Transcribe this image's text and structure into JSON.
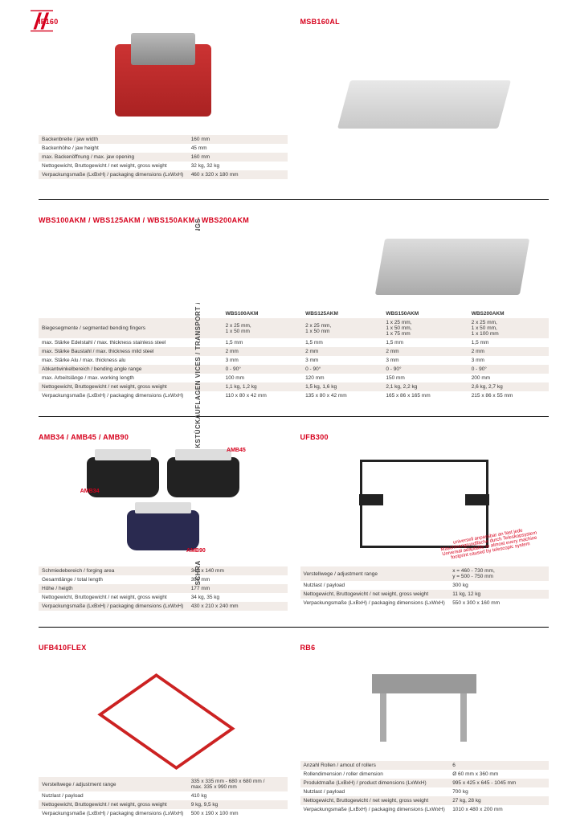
{
  "sidebar_label": "SCHRAUBSTÖCKE / TRANSPORT / WERKSTÜCKAUFLAGEN  VICES / TRANSPORT / WORKPIECE RESTINGS",
  "products": {
    "if160": {
      "title": "IF160",
      "specs": [
        [
          "Backenbreite / jaw width",
          "160 mm"
        ],
        [
          "Backenhöhe / jaw height",
          "45 mm"
        ],
        [
          "max. Backenöffnung / max. jaw opening",
          "160 mm"
        ],
        [
          "Nettogewicht, Bruttogewicht / net weight, gross weight",
          "32 kg, 32 kg"
        ],
        [
          "Verpackungsmaße (LxBxH) / packaging dimensions (LxWxH)",
          "460 x 320 x 180 mm"
        ]
      ]
    },
    "msb160al": {
      "title": "MSB160AL"
    },
    "wbs": {
      "title": "WBS100AKM / WBS125AKM / WBS150AKM / WBS200AKM",
      "cols": [
        "",
        "WBS100AKM",
        "WBS125AKM",
        "WBS150AKM",
        "WBS200AKM"
      ],
      "rows": [
        [
          "Biegesegmente / segmented bending fingers",
          "2 x 25 mm,\n1 x 50 mm",
          "2 x 25 mm,\n1 x 50 mm",
          "1 x 25 mm,\n1 x 50 mm,\n1 x 75 mm",
          "2 x 25 mm,\n1 x 50 mm,\n1 x 100 mm"
        ],
        [
          "max. Stärke Edelstahl / max. thickness stainless steel",
          "1,5 mm",
          "1,5 mm",
          "1,5 mm",
          "1,5 mm"
        ],
        [
          "max. Stärke Baustahl / max. thickness mild steel",
          "2 mm",
          "2 mm",
          "2 mm",
          "2 mm"
        ],
        [
          "max. Stärke Alu / max. thickness alu",
          "3 mm",
          "3 mm",
          "3 mm",
          "3 mm"
        ],
        [
          "Abkantwinkelbereich / bending angle range",
          "0 - 90°",
          "0 - 90°",
          "0 - 90°",
          "0 - 90°"
        ],
        [
          "max. Arbeitslänge / max. working length",
          "100 mm",
          "120 mm",
          "150 mm",
          "200 mm"
        ],
        [
          "Nettogewicht, Bruttogewicht / net weight, gross weight",
          "1,1 kg, 1,2 kg",
          "1,5 kg, 1,6 kg",
          "2,1 kg, 2,2 kg",
          "2,6 kg, 2,7 kg"
        ],
        [
          "Verpackungsmaße (LxBxH) / packaging dimensions (LxWxH)",
          "110 x 80 x 42 mm",
          "135 x 80 x 42 mm",
          "165 x 86 x 165 mm",
          "215 x 86 x 55 mm"
        ]
      ]
    },
    "amb": {
      "title": "AMB34 / AMB45 / AMB90",
      "labels": [
        "AMB34",
        "AMB45",
        "AMB90"
      ],
      "specs": [
        [
          "Schmiedebereich / forging area",
          "345 x 140 mm"
        ],
        [
          "Gesamtlänge / total length",
          "395 mm"
        ],
        [
          "Höhe / heigth",
          "177 mm"
        ],
        [
          "Nettogewicht, Bruttogewicht / net weight, gross weight",
          "34 kg, 35 kg"
        ],
        [
          "Verpackungsmaße (LxBxH) / packaging dimensions (LxWxH)",
          "430 x 210 x 240 mm"
        ]
      ]
    },
    "ufb300": {
      "title": "UFB300",
      "caption": "universell anpassbar an fast jede Maschinengrundfläche durch Teleskopsystem\nUniversal adaptable to almost every machine footprint caused by telescopic system",
      "specs": [
        [
          "Verstellwege / adjustment range",
          "x = 460 - 730 mm,\ny = 500 - 750 mm"
        ],
        [
          "Nutzlast / payload",
          "300 kg"
        ],
        [
          "Nettogewicht, Bruttogewicht / net weight, gross weight",
          "11 kg, 12 kg"
        ],
        [
          "Verpackungsmaße (LxBxH) / packaging dimensions (LxWxH)",
          "550 x 300 x 160 mm"
        ]
      ]
    },
    "ufb410": {
      "title": "UFB410FLEX",
      "specs": [
        [
          "Verstellwege / adjustment range",
          "335 x 335 mm - 680 x 680 mm /\nmax. 335 x 990 mm"
        ],
        [
          "Nutzlast / payload",
          "410 kg"
        ],
        [
          "Nettogewicht, Bruttogewicht / net weight, gross weight",
          "9 kg, 9,5 kg"
        ],
        [
          "Verpackungsmaße (LxBxH) / packaging dimensions (LxWxH)",
          "500 x 190 x 100 mm"
        ]
      ]
    },
    "rb6": {
      "title": "RB6",
      "specs": [
        [
          "Anzahl Rollen / amout of rollers",
          "6"
        ],
        [
          "Rollendimension / roller dimension",
          "Ø 60 mm x 360 mm"
        ],
        [
          "Produktmaße (LxBxH) / product dimensions (LxWxH)",
          "995 x 425 x 645 - 1045 mm"
        ],
        [
          "Nutzlast / payload",
          "700 kg"
        ],
        [
          "Nettogewicht, Bruttogewicht / net weight, gross weight",
          "27 kg, 28 kg"
        ],
        [
          "Verpackungsmaße (LxBxH) / packaging dimensions (LxWxH)",
          "1010 x 480 x 200 mm"
        ]
      ]
    }
  }
}
